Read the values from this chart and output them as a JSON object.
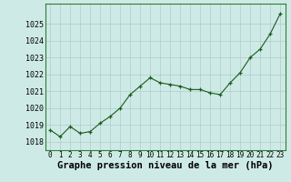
{
  "x": [
    0,
    1,
    2,
    3,
    4,
    5,
    6,
    7,
    8,
    9,
    10,
    11,
    12,
    13,
    14,
    15,
    16,
    17,
    18,
    19,
    20,
    21,
    22,
    23
  ],
  "y": [
    1018.7,
    1018.3,
    1018.9,
    1018.5,
    1018.6,
    1019.1,
    1019.5,
    1020.0,
    1020.8,
    1021.3,
    1021.8,
    1021.5,
    1021.4,
    1021.3,
    1021.1,
    1021.1,
    1020.9,
    1020.8,
    1021.5,
    1022.1,
    1023.0,
    1023.5,
    1024.4,
    1025.6
  ],
  "line_color": "#1a5c1a",
  "marker_color": "#1a5c1a",
  "bg_color": "#ceeae7",
  "grid_color": "#b0ccc8",
  "ylabel_ticks": [
    1018,
    1019,
    1020,
    1021,
    1022,
    1023,
    1024,
    1025
  ],
  "xlabel_label": "Graphe pression niveau de la mer (hPa)",
  "xlim": [
    -0.5,
    23.5
  ],
  "ylim": [
    1017.5,
    1026.2
  ],
  "xtick_fontsize": 5.5,
  "ytick_fontsize": 6.0,
  "label_fontsize": 7.5,
  "spine_color": "#2e7d32"
}
